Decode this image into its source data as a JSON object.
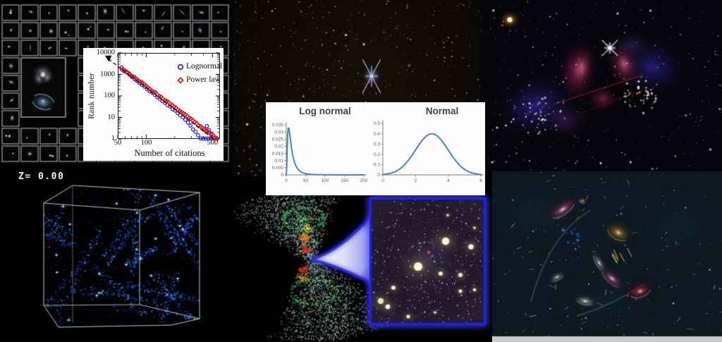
{
  "panels": {
    "galaxy_mosaic": {
      "description": "grid mosaic of galaxy cutout images"
    },
    "deep_field": {
      "description": "deep space field of faint distant galaxies with bright diffraction-spike star"
    },
    "bullet_cluster": {
      "description": "merging galaxy cluster: pink X-ray gas, blue-purple dark matter lobes"
    },
    "dm_simulation": {
      "redshift_label": "Z= 0.00",
      "description": "dark matter N-body simulation cube with blue cosmic web"
    },
    "lightcone": {
      "description": "double light-cone of large-scale structure converging to a zoom trumpet"
    },
    "cluster_inset": {
      "description": "galaxy cluster of yellow ellipticals in glowing blue frame"
    },
    "artistic_galaxies": {
      "description": "artist impression of assorted colourful galaxies"
    }
  },
  "chart_data": [
    {
      "id": "citation_rank",
      "type": "scatter",
      "xlabel": "Number of citations",
      "ylabel": "Rank number",
      "xscale": "log",
      "yscale": "log",
      "xlim": [
        50,
        600
      ],
      "ylim": [
        1,
        10000
      ],
      "x_ticks": [
        "50",
        "100",
        "500"
      ],
      "y_ticks": [
        "1",
        "10",
        "100",
        "1000",
        "10000"
      ],
      "grid": false,
      "legend_position": "top-right",
      "legend": [
        {
          "label": "Lognormal",
          "marker": "circle",
          "color": "#2020cc"
        },
        {
          "label": "Power law",
          "marker": "diamond",
          "color": "#d01818"
        }
      ],
      "series": [
        {
          "name": "Lognormal",
          "marker": "circle",
          "color": "#2020cc",
          "trend": {
            "x_start": 55,
            "x_end": 480,
            "rank_start": 1800,
            "rank_end": 1,
            "tail_droop": true
          }
        },
        {
          "name": "Power law",
          "marker": "diamond",
          "color": "#d01818",
          "trend": {
            "x_start": 55,
            "x_end": 560,
            "rank_start": 2000,
            "rank_end": 1,
            "tail_droop": false
          }
        }
      ],
      "fit_line": {
        "style": "dashed",
        "color": "#000000",
        "from": [
          52,
          2800
        ],
        "to": [
          580,
          1
        ],
        "arrow": "upper-left"
      }
    },
    {
      "id": "lognormal_distribution",
      "type": "line",
      "title": "Log normal",
      "color": "#4f81bd",
      "xlim": [
        0,
        200
      ],
      "ylim": [
        0,
        0.035
      ],
      "x_ticks": [
        "0",
        "50",
        "100",
        "150",
        "200"
      ],
      "y_ticks": [
        "0",
        "0.005",
        "0.01",
        "0.015",
        "0.02",
        "0.025",
        "0.03",
        "0.035"
      ],
      "params": {
        "mu": 2.4,
        "sigma": 0.8
      },
      "peak": {
        "x": 6,
        "y": 0.033
      }
    },
    {
      "id": "normal_distribution",
      "type": "line",
      "title": "Normal",
      "color": "#4f81bd",
      "xlim": [
        0,
        6
      ],
      "ylim": [
        0,
        0.5
      ],
      "x_ticks": [
        "0",
        "2",
        "4",
        "6"
      ],
      "y_ticks": [
        "0",
        "0.1",
        "0.2",
        "0.3",
        "0.4",
        "0.5"
      ],
      "params": {
        "mean": 3,
        "sd": 1
      },
      "peak": {
        "x": 3,
        "y": 0.4
      }
    }
  ]
}
